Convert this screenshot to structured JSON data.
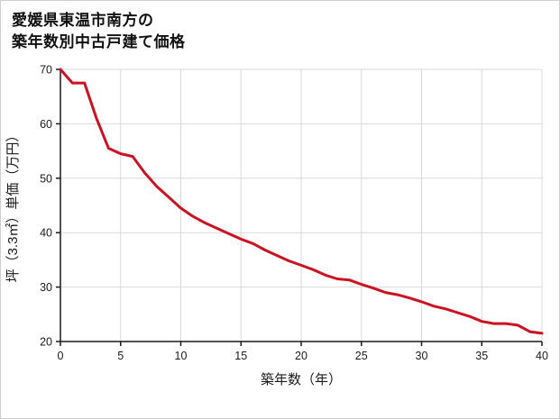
{
  "title": {
    "line1": "愛媛県東温市南方の",
    "line2": "築年数別中古戸建て価格"
  },
  "chart_data": {
    "type": "line",
    "title": "愛媛県東温市南方の築年数別中古戸建て価格",
    "xlabel": "築年数（年）",
    "ylabel": "坪（3.3㎡）単価（万円）",
    "xlim": [
      0,
      40
    ],
    "ylim": [
      20,
      70
    ],
    "xticks": [
      0,
      5,
      10,
      15,
      20,
      25,
      30,
      35,
      40
    ],
    "yticks": [
      20,
      30,
      40,
      50,
      60,
      70
    ],
    "grid": true,
    "legend": "none",
    "x": [
      0,
      1,
      2,
      3,
      4,
      5,
      6,
      7,
      8,
      9,
      10,
      11,
      12,
      13,
      14,
      15,
      16,
      17,
      18,
      19,
      20,
      21,
      22,
      23,
      24,
      25,
      26,
      27,
      28,
      29,
      30,
      31,
      32,
      33,
      34,
      35,
      36,
      37,
      38,
      39,
      40
    ],
    "values": [
      70,
      67.5,
      67.5,
      61,
      55.5,
      54.5,
      54,
      51,
      48.5,
      46.5,
      44.5,
      43,
      41.8,
      40.8,
      39.8,
      38.8,
      38,
      36.8,
      35.8,
      34.8,
      34,
      33.2,
      32.2,
      31.5,
      31.3,
      30.5,
      29.8,
      29,
      28.6,
      28,
      27.3,
      26.5,
      26,
      25.3,
      24.6,
      23.7,
      23.3,
      23.3,
      23,
      21.8,
      21.5
    ],
    "line_color": "#cc1122",
    "line_width": 3
  },
  "colors": {
    "grid": "#d9d9d9",
    "axis": "#1a1a1a",
    "background": "#ffffff",
    "border": "#cfcfcf"
  }
}
